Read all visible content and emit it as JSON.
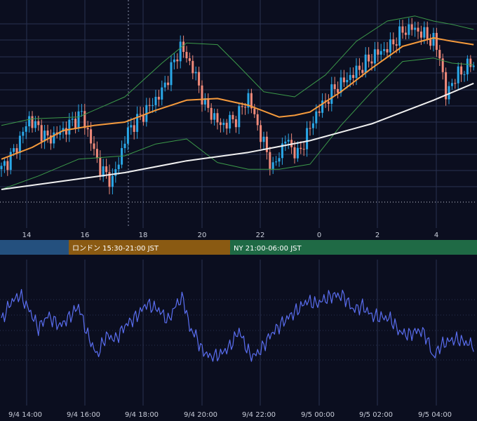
{
  "colors": {
    "background": "#0b0e1f",
    "grid": "#2a3150",
    "bull": "#2aa8e8",
    "bear": "#f08a7a",
    "ma_fast": "#f59a3c",
    "ma_slow": "#f0f0f0",
    "bollinger": "#3c9a4a",
    "oscillator": "#5a6ef0",
    "session_tokyo": "#24507e",
    "session_london": "#8a5a12",
    "session_ny": "#1f6a45"
  },
  "sessions": [
    {
      "label": "",
      "color": "#24507e"
    },
    {
      "label": "ロンドン 15:30-21:00 JST",
      "color": "#8a5a12"
    },
    {
      "label": "NY 21:00-06:00 JST",
      "color": "#1f6a45"
    }
  ],
  "chart_data": [
    {
      "type": "candlestick",
      "x_tick_labels": [
        "14",
        "16",
        "18",
        "20",
        "22",
        "0",
        "2",
        "4"
      ],
      "grid": true,
      "indicators": [
        "moving-average-fast",
        "moving-average-slow",
        "bollinger-bands"
      ],
      "price_path": [
        [
          0,
          0.12
        ],
        [
          4,
          0.22
        ],
        [
          9,
          0.42
        ],
        [
          15,
          0.3
        ],
        [
          20,
          0.35
        ],
        [
          26,
          0.45
        ],
        [
          32,
          0.12
        ],
        [
          36,
          0.05
        ],
        [
          41,
          0.35
        ],
        [
          46,
          0.45
        ],
        [
          52,
          0.58
        ],
        [
          58,
          0.85
        ],
        [
          62,
          0.72
        ],
        [
          66,
          0.5
        ],
        [
          71,
          0.38
        ],
        [
          76,
          0.42
        ],
        [
          80,
          0.55
        ],
        [
          84,
          0.32
        ],
        [
          88,
          0.12
        ],
        [
          92,
          0.3
        ],
        [
          96,
          0.2
        ],
        [
          102,
          0.45
        ],
        [
          108,
          0.6
        ],
        [
          115,
          0.7
        ],
        [
          121,
          0.8
        ],
        [
          126,
          0.85
        ],
        [
          130,
          0.94
        ],
        [
          133,
          0.96
        ],
        [
          136,
          0.93
        ],
        [
          140,
          0.88
        ],
        [
          142,
          0.8
        ],
        [
          144,
          0.55
        ],
        [
          146,
          0.64
        ],
        [
          150,
          0.72
        ],
        [
          153,
          0.75
        ]
      ],
      "ma_fast": [
        [
          0,
          0.18
        ],
        [
          10,
          0.25
        ],
        [
          20,
          0.35
        ],
        [
          30,
          0.38
        ],
        [
          40,
          0.4
        ],
        [
          50,
          0.47
        ],
        [
          60,
          0.53
        ],
        [
          70,
          0.54
        ],
        [
          80,
          0.5
        ],
        [
          90,
          0.43
        ],
        [
          95,
          0.44
        ],
        [
          100,
          0.46
        ],
        [
          110,
          0.58
        ],
        [
          120,
          0.72
        ],
        [
          130,
          0.85
        ],
        [
          140,
          0.9
        ],
        [
          146,
          0.88
        ],
        [
          153,
          0.86
        ]
      ],
      "ma_slow": [
        [
          0,
          0.0
        ],
        [
          20,
          0.05
        ],
        [
          40,
          0.1
        ],
        [
          60,
          0.17
        ],
        [
          80,
          0.22
        ],
        [
          100,
          0.29
        ],
        [
          120,
          0.39
        ],
        [
          140,
          0.53
        ],
        [
          153,
          0.63
        ]
      ],
      "bb_upper": [
        [
          0,
          0.38
        ],
        [
          10,
          0.42
        ],
        [
          25,
          0.43
        ],
        [
          40,
          0.55
        ],
        [
          52,
          0.75
        ],
        [
          60,
          0.87
        ],
        [
          70,
          0.86
        ],
        [
          76,
          0.75
        ],
        [
          85,
          0.58
        ],
        [
          95,
          0.55
        ],
        [
          105,
          0.68
        ],
        [
          115,
          0.88
        ],
        [
          125,
          1.0
        ],
        [
          134,
          1.03
        ],
        [
          140,
          1.0
        ],
        [
          146,
          0.98
        ],
        [
          153,
          0.95
        ]
      ],
      "bb_lower": [
        [
          0,
          0.0
        ],
        [
          12,
          0.08
        ],
        [
          25,
          0.18
        ],
        [
          40,
          0.2
        ],
        [
          50,
          0.27
        ],
        [
          60,
          0.3
        ],
        [
          70,
          0.16
        ],
        [
          80,
          0.12
        ],
        [
          90,
          0.12
        ],
        [
          100,
          0.15
        ],
        [
          110,
          0.38
        ],
        [
          120,
          0.58
        ],
        [
          130,
          0.76
        ],
        [
          140,
          0.78
        ],
        [
          146,
          0.75
        ],
        [
          153,
          0.74
        ]
      ]
    },
    {
      "type": "line",
      "x_tick_labels": [
        "9/4 14:00",
        "9/4 16:00",
        "9/4 18:00",
        "9/4 20:00",
        "9/4 22:00",
        "9/5 00:00",
        "9/5 02:00",
        "9/5 04:00"
      ],
      "grid": true,
      "series": [
        {
          "values": [
            [
              0,
              0.55
            ],
            [
              3,
              0.8
            ],
            [
              6,
              0.9
            ],
            [
              9,
              0.7
            ],
            [
              12,
              0.45
            ],
            [
              15,
              0.62
            ],
            [
              19,
              0.48
            ],
            [
              22,
              0.6
            ],
            [
              25,
              0.75
            ],
            [
              28,
              0.35
            ],
            [
              31,
              0.08
            ],
            [
              34,
              0.35
            ],
            [
              37,
              0.3
            ],
            [
              40,
              0.48
            ],
            [
              44,
              0.62
            ],
            [
              47,
              0.78
            ],
            [
              51,
              0.7
            ],
            [
              54,
              0.55
            ],
            [
              57,
              0.8
            ],
            [
              59,
              0.85
            ],
            [
              61,
              0.45
            ],
            [
              63,
              0.35
            ],
            [
              65,
              0.15
            ],
            [
              68,
              0.05
            ],
            [
              71,
              0.1
            ],
            [
              74,
              0.2
            ],
            [
              77,
              0.42
            ],
            [
              79,
              0.22
            ],
            [
              81,
              0.05
            ],
            [
              84,
              0.15
            ],
            [
              87,
              0.35
            ],
            [
              90,
              0.48
            ],
            [
              93,
              0.6
            ],
            [
              96,
              0.7
            ],
            [
              99,
              0.82
            ],
            [
              102,
              0.78
            ],
            [
              105,
              0.85
            ],
            [
              108,
              0.9
            ],
            [
              111,
              0.88
            ],
            [
              114,
              0.7
            ],
            [
              117,
              0.75
            ],
            [
              120,
              0.62
            ],
            [
              123,
              0.6
            ],
            [
              126,
              0.58
            ],
            [
              129,
              0.4
            ],
            [
              132,
              0.36
            ],
            [
              135,
              0.42
            ],
            [
              137,
              0.38
            ],
            [
              138,
              0.3
            ],
            [
              140,
              0.05
            ],
            [
              142,
              0.2
            ],
            [
              145,
              0.28
            ],
            [
              148,
              0.3
            ],
            [
              150,
              0.26
            ],
            [
              153,
              0.22
            ]
          ]
        }
      ]
    }
  ]
}
